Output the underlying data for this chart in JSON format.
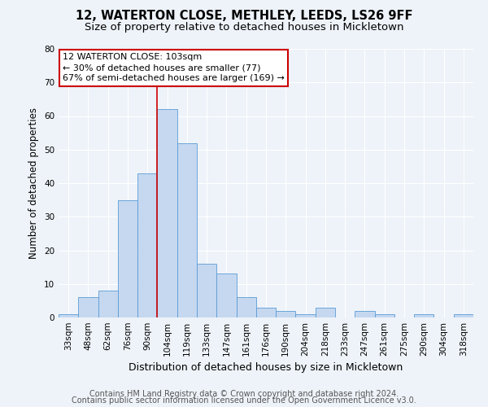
{
  "title": "12, WATERTON CLOSE, METHLEY, LEEDS, LS26 9FF",
  "subtitle": "Size of property relative to detached houses in Mickletown",
  "xlabel": "Distribution of detached houses by size in Mickletown",
  "ylabel": "Number of detached properties",
  "bar_labels": [
    "33sqm",
    "48sqm",
    "62sqm",
    "76sqm",
    "90sqm",
    "104sqm",
    "119sqm",
    "133sqm",
    "147sqm",
    "161sqm",
    "176sqm",
    "190sqm",
    "204sqm",
    "218sqm",
    "233sqm",
    "247sqm",
    "261sqm",
    "275sqm",
    "290sqm",
    "304sqm",
    "318sqm"
  ],
  "bar_values": [
    1,
    6,
    8,
    35,
    43,
    62,
    52,
    16,
    13,
    6,
    3,
    2,
    1,
    3,
    0,
    2,
    1,
    0,
    1,
    0,
    1
  ],
  "bar_color": "#c5d8f0",
  "bar_edge_color": "#5b9bd5",
  "ylim": [
    0,
    80
  ],
  "yticks": [
    0,
    10,
    20,
    30,
    40,
    50,
    60,
    70,
    80
  ],
  "vline_index": 5,
  "vline_color": "#cc0000",
  "annotation_line1": "12 WATERTON CLOSE: 103sqm",
  "annotation_line2": "← 30% of detached houses are smaller (77)",
  "annotation_line3": "67% of semi-detached houses are larger (169) →",
  "annotation_box_color": "#ffffff",
  "annotation_border_color": "#cc0000",
  "footer_line1": "Contains HM Land Registry data © Crown copyright and database right 2024.",
  "footer_line2": "Contains public sector information licensed under the Open Government Licence v3.0.",
  "background_color": "#eef3f9",
  "plot_background": "#eef3f9",
  "title_fontsize": 10.5,
  "subtitle_fontsize": 9.5,
  "xlabel_fontsize": 9,
  "ylabel_fontsize": 8.5,
  "tick_fontsize": 7.5,
  "annot_fontsize": 8,
  "footer_fontsize": 7
}
